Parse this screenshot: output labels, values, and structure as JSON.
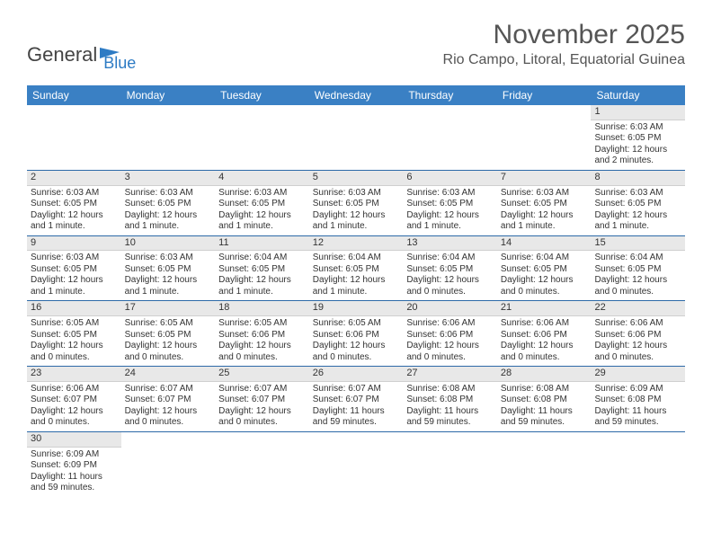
{
  "brand": {
    "first": "General",
    "second": "Blue"
  },
  "title": "November 2025",
  "subtitle": "Rio Campo, Litoral, Equatorial Guinea",
  "colors": {
    "header_bg": "#3a80c4",
    "header_text": "#ffffff",
    "row_border": "#2d6aa8",
    "daynum_bg": "#e8e8e8",
    "daynum_border": "#cfcfcf",
    "text": "#333333",
    "title_text": "#555555",
    "brand_blue": "#2d7bc4",
    "page_bg": "#ffffff"
  },
  "weekdays": [
    "Sunday",
    "Monday",
    "Tuesday",
    "Wednesday",
    "Thursday",
    "Friday",
    "Saturday"
  ],
  "weeks": [
    [
      null,
      null,
      null,
      null,
      null,
      null,
      {
        "n": "1",
        "sr": "Sunrise: 6:03 AM",
        "ss": "Sunset: 6:05 PM",
        "d1": "Daylight: 12 hours",
        "d2": "and 2 minutes."
      }
    ],
    [
      {
        "n": "2",
        "sr": "Sunrise: 6:03 AM",
        "ss": "Sunset: 6:05 PM",
        "d1": "Daylight: 12 hours",
        "d2": "and 1 minute."
      },
      {
        "n": "3",
        "sr": "Sunrise: 6:03 AM",
        "ss": "Sunset: 6:05 PM",
        "d1": "Daylight: 12 hours",
        "d2": "and 1 minute."
      },
      {
        "n": "4",
        "sr": "Sunrise: 6:03 AM",
        "ss": "Sunset: 6:05 PM",
        "d1": "Daylight: 12 hours",
        "d2": "and 1 minute."
      },
      {
        "n": "5",
        "sr": "Sunrise: 6:03 AM",
        "ss": "Sunset: 6:05 PM",
        "d1": "Daylight: 12 hours",
        "d2": "and 1 minute."
      },
      {
        "n": "6",
        "sr": "Sunrise: 6:03 AM",
        "ss": "Sunset: 6:05 PM",
        "d1": "Daylight: 12 hours",
        "d2": "and 1 minute."
      },
      {
        "n": "7",
        "sr": "Sunrise: 6:03 AM",
        "ss": "Sunset: 6:05 PM",
        "d1": "Daylight: 12 hours",
        "d2": "and 1 minute."
      },
      {
        "n": "8",
        "sr": "Sunrise: 6:03 AM",
        "ss": "Sunset: 6:05 PM",
        "d1": "Daylight: 12 hours",
        "d2": "and 1 minute."
      }
    ],
    [
      {
        "n": "9",
        "sr": "Sunrise: 6:03 AM",
        "ss": "Sunset: 6:05 PM",
        "d1": "Daylight: 12 hours",
        "d2": "and 1 minute."
      },
      {
        "n": "10",
        "sr": "Sunrise: 6:03 AM",
        "ss": "Sunset: 6:05 PM",
        "d1": "Daylight: 12 hours",
        "d2": "and 1 minute."
      },
      {
        "n": "11",
        "sr": "Sunrise: 6:04 AM",
        "ss": "Sunset: 6:05 PM",
        "d1": "Daylight: 12 hours",
        "d2": "and 1 minute."
      },
      {
        "n": "12",
        "sr": "Sunrise: 6:04 AM",
        "ss": "Sunset: 6:05 PM",
        "d1": "Daylight: 12 hours",
        "d2": "and 1 minute."
      },
      {
        "n": "13",
        "sr": "Sunrise: 6:04 AM",
        "ss": "Sunset: 6:05 PM",
        "d1": "Daylight: 12 hours",
        "d2": "and 0 minutes."
      },
      {
        "n": "14",
        "sr": "Sunrise: 6:04 AM",
        "ss": "Sunset: 6:05 PM",
        "d1": "Daylight: 12 hours",
        "d2": "and 0 minutes."
      },
      {
        "n": "15",
        "sr": "Sunrise: 6:04 AM",
        "ss": "Sunset: 6:05 PM",
        "d1": "Daylight: 12 hours",
        "d2": "and 0 minutes."
      }
    ],
    [
      {
        "n": "16",
        "sr": "Sunrise: 6:05 AM",
        "ss": "Sunset: 6:05 PM",
        "d1": "Daylight: 12 hours",
        "d2": "and 0 minutes."
      },
      {
        "n": "17",
        "sr": "Sunrise: 6:05 AM",
        "ss": "Sunset: 6:05 PM",
        "d1": "Daylight: 12 hours",
        "d2": "and 0 minutes."
      },
      {
        "n": "18",
        "sr": "Sunrise: 6:05 AM",
        "ss": "Sunset: 6:06 PM",
        "d1": "Daylight: 12 hours",
        "d2": "and 0 minutes."
      },
      {
        "n": "19",
        "sr": "Sunrise: 6:05 AM",
        "ss": "Sunset: 6:06 PM",
        "d1": "Daylight: 12 hours",
        "d2": "and 0 minutes."
      },
      {
        "n": "20",
        "sr": "Sunrise: 6:06 AM",
        "ss": "Sunset: 6:06 PM",
        "d1": "Daylight: 12 hours",
        "d2": "and 0 minutes."
      },
      {
        "n": "21",
        "sr": "Sunrise: 6:06 AM",
        "ss": "Sunset: 6:06 PM",
        "d1": "Daylight: 12 hours",
        "d2": "and 0 minutes."
      },
      {
        "n": "22",
        "sr": "Sunrise: 6:06 AM",
        "ss": "Sunset: 6:06 PM",
        "d1": "Daylight: 12 hours",
        "d2": "and 0 minutes."
      }
    ],
    [
      {
        "n": "23",
        "sr": "Sunrise: 6:06 AM",
        "ss": "Sunset: 6:07 PM",
        "d1": "Daylight: 12 hours",
        "d2": "and 0 minutes."
      },
      {
        "n": "24",
        "sr": "Sunrise: 6:07 AM",
        "ss": "Sunset: 6:07 PM",
        "d1": "Daylight: 12 hours",
        "d2": "and 0 minutes."
      },
      {
        "n": "25",
        "sr": "Sunrise: 6:07 AM",
        "ss": "Sunset: 6:07 PM",
        "d1": "Daylight: 12 hours",
        "d2": "and 0 minutes."
      },
      {
        "n": "26",
        "sr": "Sunrise: 6:07 AM",
        "ss": "Sunset: 6:07 PM",
        "d1": "Daylight: 11 hours",
        "d2": "and 59 minutes."
      },
      {
        "n": "27",
        "sr": "Sunrise: 6:08 AM",
        "ss": "Sunset: 6:08 PM",
        "d1": "Daylight: 11 hours",
        "d2": "and 59 minutes."
      },
      {
        "n": "28",
        "sr": "Sunrise: 6:08 AM",
        "ss": "Sunset: 6:08 PM",
        "d1": "Daylight: 11 hours",
        "d2": "and 59 minutes."
      },
      {
        "n": "29",
        "sr": "Sunrise: 6:09 AM",
        "ss": "Sunset: 6:08 PM",
        "d1": "Daylight: 11 hours",
        "d2": "and 59 minutes."
      }
    ],
    [
      {
        "n": "30",
        "sr": "Sunrise: 6:09 AM",
        "ss": "Sunset: 6:09 PM",
        "d1": "Daylight: 11 hours",
        "d2": "and 59 minutes."
      },
      null,
      null,
      null,
      null,
      null,
      null
    ]
  ]
}
